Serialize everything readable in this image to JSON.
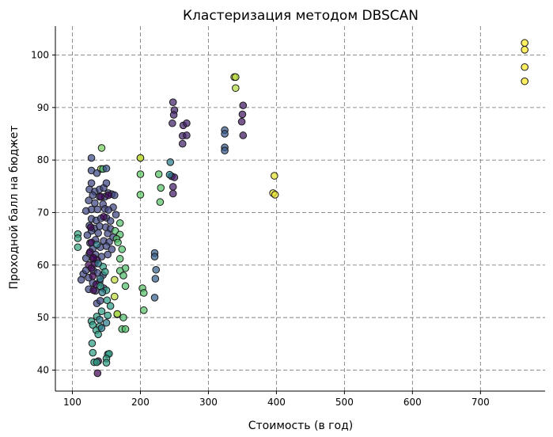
{
  "chart_data": {
    "type": "scatter",
    "title": "Кластеризация методом DBSCAN",
    "xlabel": "Стоимость (в год)",
    "ylabel": "Проходной балл на бюджет",
    "xlim": [
      75,
      795
    ],
    "ylim": [
      36.0,
      105.5
    ],
    "xticks": [
      100,
      200,
      300,
      400,
      500,
      600,
      700
    ],
    "yticks": [
      40,
      50,
      60,
      70,
      80,
      90,
      100
    ],
    "grid": true,
    "cmap": "viridis",
    "points": [
      {
        "x": 765,
        "y": 102.3,
        "c": 1.0
      },
      {
        "x": 765,
        "y": 101.0,
        "c": 1.0
      },
      {
        "x": 765,
        "y": 97.7,
        "c": 1.0
      },
      {
        "x": 765,
        "y": 95.0,
        "c": 1.0
      },
      {
        "x": 397,
        "y": 77.0,
        "c": 0.96
      },
      {
        "x": 395,
        "y": 73.7,
        "c": 0.96
      },
      {
        "x": 398,
        "y": 73.4,
        "c": 0.96
      },
      {
        "x": 338,
        "y": 95.8,
        "c": 0.92
      },
      {
        "x": 340,
        "y": 95.8,
        "c": 0.88
      },
      {
        "x": 340,
        "y": 93.7,
        "c": 0.88
      },
      {
        "x": 248,
        "y": 91.0,
        "c": 0.1
      },
      {
        "x": 250,
        "y": 89.5,
        "c": 0.1
      },
      {
        "x": 249,
        "y": 88.6,
        "c": 0.1
      },
      {
        "x": 247,
        "y": 87.0,
        "c": 0.1
      },
      {
        "x": 263,
        "y": 86.6,
        "c": 0.1
      },
      {
        "x": 268,
        "y": 87.0,
        "c": 0.1
      },
      {
        "x": 262,
        "y": 84.6,
        "c": 0.1
      },
      {
        "x": 268,
        "y": 84.7,
        "c": 0.1
      },
      {
        "x": 262,
        "y": 83.1,
        "c": 0.1
      },
      {
        "x": 246,
        "y": 76.9,
        "c": 0.08
      },
      {
        "x": 250,
        "y": 76.7,
        "c": 0.08
      },
      {
        "x": 248,
        "y": 74.9,
        "c": 0.08
      },
      {
        "x": 248,
        "y": 73.6,
        "c": 0.08
      },
      {
        "x": 351,
        "y": 90.4,
        "c": 0.07
      },
      {
        "x": 350,
        "y": 88.7,
        "c": 0.07
      },
      {
        "x": 349,
        "y": 87.3,
        "c": 0.07
      },
      {
        "x": 351,
        "y": 84.7,
        "c": 0.07
      },
      {
        "x": 324,
        "y": 85.7,
        "c": 0.28
      },
      {
        "x": 324,
        "y": 85.0,
        "c": 0.28
      },
      {
        "x": 324,
        "y": 82.4,
        "c": 0.28
      },
      {
        "x": 324,
        "y": 81.8,
        "c": 0.28
      },
      {
        "x": 221,
        "y": 62.3,
        "c": 0.3
      },
      {
        "x": 221,
        "y": 61.6,
        "c": 0.3
      },
      {
        "x": 223,
        "y": 59.1,
        "c": 0.3
      },
      {
        "x": 222,
        "y": 57.4,
        "c": 0.3
      },
      {
        "x": 221,
        "y": 53.8,
        "c": 0.3
      },
      {
        "x": 244,
        "y": 79.6,
        "c": 0.42
      },
      {
        "x": 243,
        "y": 77.2,
        "c": 0.42
      },
      {
        "x": 200,
        "y": 80.4,
        "c": 0.9
      },
      {
        "x": 200,
        "y": 80.4,
        "c": 0.9
      },
      {
        "x": 200,
        "y": 77.3,
        "c": 0.75
      },
      {
        "x": 200,
        "y": 73.4,
        "c": 0.75
      },
      {
        "x": 227,
        "y": 77.3,
        "c": 0.72
      },
      {
        "x": 230,
        "y": 74.7,
        "c": 0.72
      },
      {
        "x": 229,
        "y": 72.0,
        "c": 0.72
      },
      {
        "x": 203,
        "y": 55.6,
        "c": 0.72
      },
      {
        "x": 205,
        "y": 54.7,
        "c": 0.72
      },
      {
        "x": 205,
        "y": 51.4,
        "c": 0.72
      },
      {
        "x": 108,
        "y": 65.9,
        "c": 0.58
      },
      {
        "x": 108,
        "y": 65.1,
        "c": 0.58
      },
      {
        "x": 108,
        "y": 63.4,
        "c": 0.58
      },
      {
        "x": 143,
        "y": 82.3,
        "c": 0.78
      },
      {
        "x": 142,
        "y": 78.3,
        "c": 0.88
      },
      {
        "x": 145,
        "y": 78.3,
        "c": 0.6
      },
      {
        "x": 150,
        "y": 78.4,
        "c": 0.25
      },
      {
        "x": 128,
        "y": 80.4,
        "c": 0.22
      },
      {
        "x": 128,
        "y": 78.0,
        "c": 0.22
      },
      {
        "x": 136,
        "y": 77.5,
        "c": 0.22
      },
      {
        "x": 128,
        "y": 75.6,
        "c": 0.2
      },
      {
        "x": 125,
        "y": 74.4,
        "c": 0.2
      },
      {
        "x": 133,
        "y": 74.0,
        "c": 0.2
      },
      {
        "x": 140,
        "y": 74.4,
        "c": 0.2
      },
      {
        "x": 146,
        "y": 74.7,
        "c": 0.2
      },
      {
        "x": 150,
        "y": 75.6,
        "c": 0.2
      },
      {
        "x": 153,
        "y": 73.7,
        "c": 0.2
      },
      {
        "x": 158,
        "y": 73.5,
        "c": 0.2
      },
      {
        "x": 162,
        "y": 73.3,
        "c": 0.2
      },
      {
        "x": 130,
        "y": 73.3,
        "c": 0.2
      },
      {
        "x": 140,
        "y": 73.0,
        "c": 0.2
      },
      {
        "x": 148,
        "y": 73.0,
        "c": 0.2
      },
      {
        "x": 124,
        "y": 72.3,
        "c": 0.2
      },
      {
        "x": 133,
        "y": 71.8,
        "c": 0.2
      },
      {
        "x": 145,
        "y": 71.6,
        "c": 0.2
      },
      {
        "x": 160,
        "y": 71.0,
        "c": 0.2
      },
      {
        "x": 128,
        "y": 70.6,
        "c": 0.2
      },
      {
        "x": 137,
        "y": 70.6,
        "c": 0.2
      },
      {
        "x": 148,
        "y": 70.7,
        "c": 0.2
      },
      {
        "x": 153,
        "y": 70.5,
        "c": 0.2
      },
      {
        "x": 120,
        "y": 70.3,
        "c": 0.2
      },
      {
        "x": 164,
        "y": 69.6,
        "c": 0.2
      },
      {
        "x": 128,
        "y": 68.8,
        "c": 0.2
      },
      {
        "x": 135,
        "y": 68.5,
        "c": 0.2
      },
      {
        "x": 142,
        "y": 68.9,
        "c": 0.2
      },
      {
        "x": 150,
        "y": 69.0,
        "c": 0.2
      },
      {
        "x": 156,
        "y": 68.4,
        "c": 0.2
      },
      {
        "x": 125,
        "y": 67.5,
        "c": 0.2
      },
      {
        "x": 132,
        "y": 67.0,
        "c": 0.2
      },
      {
        "x": 140,
        "y": 67.4,
        "c": 0.2
      },
      {
        "x": 149,
        "y": 67.2,
        "c": 0.2
      },
      {
        "x": 156,
        "y": 66.9,
        "c": 0.2
      },
      {
        "x": 128,
        "y": 66.5,
        "c": 0.2
      },
      {
        "x": 138,
        "y": 66.1,
        "c": 0.2
      },
      {
        "x": 152,
        "y": 66.0,
        "c": 0.2
      },
      {
        "x": 160,
        "y": 65.3,
        "c": 0.2
      },
      {
        "x": 122,
        "y": 65.7,
        "c": 0.2
      },
      {
        "x": 134,
        "y": 64.8,
        "c": 0.2
      },
      {
        "x": 146,
        "y": 64.6,
        "c": 0.2
      },
      {
        "x": 154,
        "y": 64.4,
        "c": 0.2
      },
      {
        "x": 126,
        "y": 64.2,
        "c": 0.2
      },
      {
        "x": 130,
        "y": 63.1,
        "c": 0.2
      },
      {
        "x": 141,
        "y": 63.4,
        "c": 0.2
      },
      {
        "x": 150,
        "y": 63.6,
        "c": 0.2
      },
      {
        "x": 158,
        "y": 63.0,
        "c": 0.2
      },
      {
        "x": 120,
        "y": 61.3,
        "c": 0.2
      },
      {
        "x": 125,
        "y": 62.2,
        "c": 0.2
      },
      {
        "x": 134,
        "y": 62.0,
        "c": 0.2
      },
      {
        "x": 143,
        "y": 61.6,
        "c": 0.2
      },
      {
        "x": 152,
        "y": 62.0,
        "c": 0.2
      },
      {
        "x": 116,
        "y": 58.3,
        "c": 0.2
      },
      {
        "x": 113,
        "y": 57.2,
        "c": 0.2
      },
      {
        "x": 120,
        "y": 59.0,
        "c": 0.2
      },
      {
        "x": 124,
        "y": 57.6,
        "c": 0.2
      },
      {
        "x": 131,
        "y": 58.9,
        "c": 0.2
      },
      {
        "x": 137,
        "y": 58.5,
        "c": 0.2
      },
      {
        "x": 145,
        "y": 58.1,
        "c": 0.2
      },
      {
        "x": 130,
        "y": 56.6,
        "c": 0.2
      },
      {
        "x": 140,
        "y": 56.8,
        "c": 0.2
      },
      {
        "x": 124,
        "y": 55.4,
        "c": 0.2
      },
      {
        "x": 134,
        "y": 55.1,
        "c": 0.2
      },
      {
        "x": 146,
        "y": 55.6,
        "c": 0.2
      },
      {
        "x": 136,
        "y": 52.7,
        "c": 0.2
      },
      {
        "x": 141,
        "y": 53.2,
        "c": 0.2
      },
      {
        "x": 127,
        "y": 67.2,
        "c": 0.02
      },
      {
        "x": 128,
        "y": 64.3,
        "c": 0.02
      },
      {
        "x": 126,
        "y": 62.5,
        "c": 0.02
      },
      {
        "x": 130,
        "y": 61.2,
        "c": 0.02
      },
      {
        "x": 136,
        "y": 61.0,
        "c": 0.02
      },
      {
        "x": 124,
        "y": 60.0,
        "c": 0.02
      },
      {
        "x": 128,
        "y": 59.4,
        "c": 0.02
      },
      {
        "x": 133,
        "y": 60.3,
        "c": 0.02
      },
      {
        "x": 130,
        "y": 57.9,
        "c": 0.02
      },
      {
        "x": 135,
        "y": 56.3,
        "c": 0.02
      },
      {
        "x": 131,
        "y": 55.2,
        "c": 0.02
      },
      {
        "x": 153,
        "y": 73.3,
        "c": 0.02
      },
      {
        "x": 142,
        "y": 73.0,
        "c": 0.02
      },
      {
        "x": 138,
        "y": 41.7,
        "c": 0.02
      },
      {
        "x": 137,
        "y": 39.4,
        "c": 0.02
      },
      {
        "x": 131,
        "y": 61.4,
        "c": 0.02
      },
      {
        "x": 146,
        "y": 69.2,
        "c": 0.02
      },
      {
        "x": 145,
        "y": 59.7,
        "c": 0.55
      },
      {
        "x": 148,
        "y": 58.7,
        "c": 0.55
      },
      {
        "x": 141,
        "y": 56.0,
        "c": 0.55
      },
      {
        "x": 150,
        "y": 55.2,
        "c": 0.55
      },
      {
        "x": 151,
        "y": 53.3,
        "c": 0.55
      },
      {
        "x": 156,
        "y": 52.2,
        "c": 0.55
      },
      {
        "x": 143,
        "y": 51.2,
        "c": 0.55
      },
      {
        "x": 152,
        "y": 50.4,
        "c": 0.55
      },
      {
        "x": 136,
        "y": 50.2,
        "c": 0.55
      },
      {
        "x": 128,
        "y": 49.3,
        "c": 0.55
      },
      {
        "x": 130,
        "y": 48.6,
        "c": 0.55
      },
      {
        "x": 140,
        "y": 48.3,
        "c": 0.55
      },
      {
        "x": 135,
        "y": 47.6,
        "c": 0.55
      },
      {
        "x": 138,
        "y": 46.8,
        "c": 0.55
      },
      {
        "x": 129,
        "y": 45.1,
        "c": 0.55
      },
      {
        "x": 130,
        "y": 43.3,
        "c": 0.55
      },
      {
        "x": 152,
        "y": 43.0,
        "c": 0.55
      },
      {
        "x": 154,
        "y": 43.1,
        "c": 0.55
      },
      {
        "x": 150,
        "y": 42.2,
        "c": 0.55
      },
      {
        "x": 150,
        "y": 41.4,
        "c": 0.55
      },
      {
        "x": 132,
        "y": 41.5,
        "c": 0.55
      },
      {
        "x": 136,
        "y": 41.5,
        "c": 0.55
      },
      {
        "x": 140,
        "y": 49.6,
        "c": 0.4
      },
      {
        "x": 143,
        "y": 48.0,
        "c": 0.4
      },
      {
        "x": 150,
        "y": 49.0,
        "c": 0.4
      },
      {
        "x": 138,
        "y": 60.3,
        "c": 0.4
      },
      {
        "x": 141,
        "y": 57.4,
        "c": 0.4
      },
      {
        "x": 136,
        "y": 63.9,
        "c": 0.4
      },
      {
        "x": 144,
        "y": 54.8,
        "c": 0.4
      },
      {
        "x": 170,
        "y": 68.0,
        "c": 0.7
      },
      {
        "x": 163,
        "y": 66.5,
        "c": 0.7
      },
      {
        "x": 170,
        "y": 65.8,
        "c": 0.7
      },
      {
        "x": 165,
        "y": 65.0,
        "c": 0.7
      },
      {
        "x": 167,
        "y": 64.3,
        "c": 0.7
      },
      {
        "x": 173,
        "y": 63.0,
        "c": 0.7
      },
      {
        "x": 170,
        "y": 61.2,
        "c": 0.7
      },
      {
        "x": 178,
        "y": 59.4,
        "c": 0.7
      },
      {
        "x": 170,
        "y": 58.9,
        "c": 0.7
      },
      {
        "x": 175,
        "y": 58.0,
        "c": 0.7
      },
      {
        "x": 178,
        "y": 56.0,
        "c": 0.7
      },
      {
        "x": 166,
        "y": 50.6,
        "c": 0.7
      },
      {
        "x": 175,
        "y": 50.0,
        "c": 0.7
      },
      {
        "x": 173,
        "y": 47.8,
        "c": 0.7
      },
      {
        "x": 178,
        "y": 47.8,
        "c": 0.7
      },
      {
        "x": 162,
        "y": 57.2,
        "c": 0.9
      },
      {
        "x": 162,
        "y": 54.0,
        "c": 0.9
      },
      {
        "x": 166,
        "y": 50.7,
        "c": 0.9
      }
    ]
  }
}
